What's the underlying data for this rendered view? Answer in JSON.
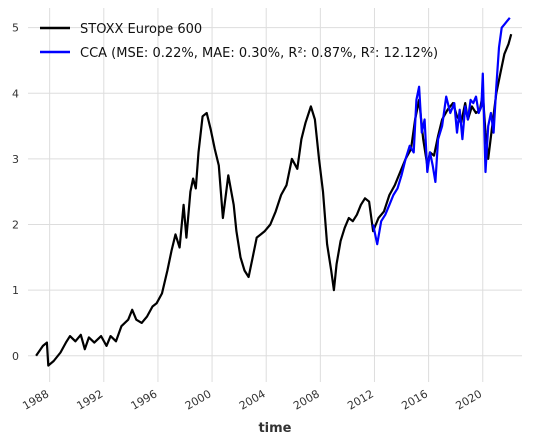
{
  "chart_data": {
    "type": "line",
    "title": "",
    "xlabel": "time",
    "ylabel": "",
    "xlim": [
      1986.4,
      2022.9
    ],
    "ylim": [
      -0.4,
      5.3
    ],
    "grid": true,
    "legend_position": "top-left",
    "x_tick_values": [
      1988,
      1992,
      1996,
      2000,
      2004,
      2008,
      2012,
      2016,
      2020
    ],
    "x_ticks": [
      "1988",
      "1992",
      "1996",
      "2000",
      "2004",
      "2008",
      "2012",
      "2016",
      "2020"
    ],
    "y_tick_values": [
      0,
      1,
      2,
      3,
      4,
      5
    ],
    "y_ticks": [
      "0",
      "1",
      "2",
      "3",
      "4",
      "5"
    ],
    "series": [
      {
        "name": "STOXX Europe 600",
        "color": "#000000",
        "x": [
          1987.0,
          1987.5,
          1987.8,
          1987.9,
          1988.3,
          1988.8,
          1989.2,
          1989.5,
          1989.9,
          1990.3,
          1990.6,
          1990.9,
          1991.3,
          1991.8,
          1992.2,
          1992.5,
          1992.9,
          1993.3,
          1993.8,
          1994.1,
          1994.4,
          1994.8,
          1995.2,
          1995.6,
          1995.9,
          1996.3,
          1996.7,
          1997.0,
          1997.3,
          1997.6,
          1997.9,
          1998.1,
          1998.4,
          1998.6,
          1998.8,
          1999.0,
          1999.3,
          1999.6,
          1999.9,
          2000.2,
          2000.5,
          2000.8,
          2001.2,
          2001.6,
          2001.8,
          2002.1,
          2002.4,
          2002.7,
          2003.0,
          2003.3,
          2003.6,
          2003.9,
          2004.3,
          2004.7,
          2005.1,
          2005.5,
          2005.9,
          2006.3,
          2006.6,
          2006.9,
          2007.3,
          2007.6,
          2007.9,
          2008.2,
          2008.5,
          2008.8,
          2009.0,
          2009.2,
          2009.5,
          2009.8,
          2010.1,
          2010.4,
          2010.7,
          2011.0,
          2011.3,
          2011.6,
          2011.9,
          2012.3,
          2012.7,
          2013.1,
          2013.5,
          2013.9,
          2014.3,
          2014.7,
          2015.0,
          2015.3,
          2015.6,
          2015.9,
          2016.1,
          2016.4,
          2016.7,
          2017.0,
          2017.4,
          2017.8,
          2018.1,
          2018.4,
          2018.7,
          2018.9,
          2019.2,
          2019.5,
          2019.8,
          2020.0,
          2020.2,
          2020.4,
          2020.7,
          2021.0,
          2021.3,
          2021.6,
          2021.9,
          2022.1
        ],
        "y": [
          0.0,
          0.15,
          0.2,
          -0.15,
          -0.08,
          0.05,
          0.2,
          0.3,
          0.22,
          0.32,
          0.1,
          0.28,
          0.2,
          0.3,
          0.15,
          0.3,
          0.22,
          0.45,
          0.55,
          0.7,
          0.55,
          0.5,
          0.6,
          0.75,
          0.8,
          0.95,
          1.3,
          1.6,
          1.85,
          1.65,
          2.3,
          1.8,
          2.5,
          2.7,
          2.55,
          3.1,
          3.65,
          3.7,
          3.45,
          3.15,
          2.9,
          2.1,
          2.75,
          2.3,
          1.9,
          1.5,
          1.3,
          1.2,
          1.5,
          1.8,
          1.85,
          1.9,
          2.0,
          2.2,
          2.45,
          2.6,
          3.0,
          2.85,
          3.3,
          3.55,
          3.8,
          3.6,
          3.0,
          2.5,
          1.7,
          1.3,
          1.0,
          1.4,
          1.75,
          1.95,
          2.1,
          2.05,
          2.15,
          2.3,
          2.4,
          2.35,
          1.9,
          2.1,
          2.2,
          2.45,
          2.6,
          2.8,
          3.0,
          3.15,
          3.6,
          3.9,
          3.3,
          2.9,
          3.1,
          3.05,
          3.35,
          3.6,
          3.75,
          3.85,
          3.65,
          3.55,
          3.85,
          3.6,
          3.8,
          3.7,
          3.75,
          4.0,
          3.4,
          3.0,
          3.5,
          4.0,
          4.3,
          4.6,
          4.75,
          4.9
        ]
      },
      {
        "name": "CCA (MSE: 0.22%, MAE: 0.30%, R²: 0.87%, R²: 12.12%)",
        "color": "#0000ff",
        "x": [
          2011.9,
          2012.2,
          2012.5,
          2012.8,
          2013.1,
          2013.4,
          2013.7,
          2014.0,
          2014.3,
          2014.6,
          2014.9,
          2015.1,
          2015.3,
          2015.5,
          2015.7,
          2015.9,
          2016.1,
          2016.3,
          2016.5,
          2016.7,
          2017.0,
          2017.3,
          2017.6,
          2017.9,
          2018.1,
          2018.3,
          2018.5,
          2018.7,
          2018.9,
          2019.1,
          2019.3,
          2019.5,
          2019.7,
          2019.9,
          2020.0,
          2020.2,
          2020.4,
          2020.6,
          2020.8,
          2021.0,
          2021.2,
          2021.4,
          2021.6,
          2021.8,
          2022.0
        ],
        "y": [
          2.0,
          1.7,
          2.05,
          2.15,
          2.3,
          2.45,
          2.55,
          2.75,
          3.0,
          3.2,
          3.1,
          3.9,
          4.1,
          3.4,
          3.6,
          2.8,
          3.1,
          2.9,
          2.65,
          3.3,
          3.5,
          3.95,
          3.7,
          3.85,
          3.4,
          3.75,
          3.3,
          3.8,
          3.6,
          3.9,
          3.85,
          3.95,
          3.7,
          3.8,
          4.3,
          2.8,
          3.5,
          3.7,
          3.4,
          4.1,
          4.7,
          5.0,
          5.05,
          5.1,
          5.15
        ]
      }
    ]
  }
}
